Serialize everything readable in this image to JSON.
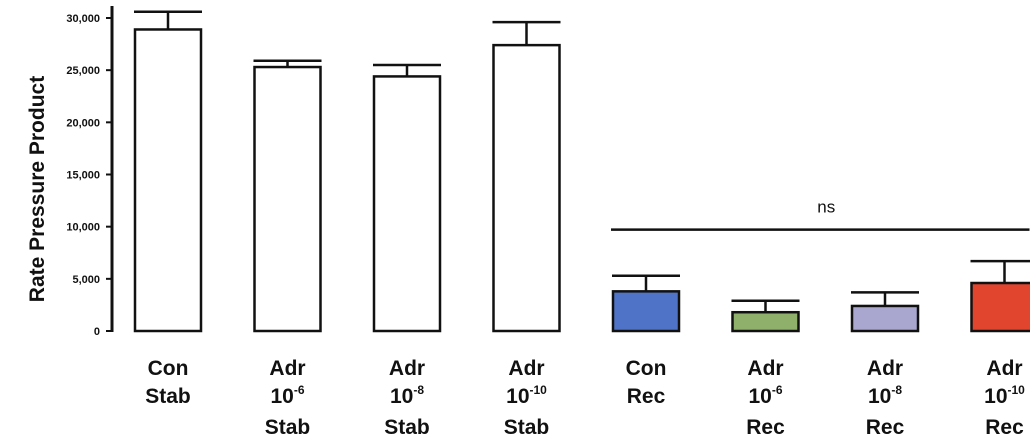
{
  "chart_data": {
    "type": "bar",
    "title": "",
    "xlabel": "",
    "ylabel": "Rate Pressure Product",
    "ylim": [
      0,
      30000
    ],
    "yticks": [
      {
        "value": 0,
        "label": "0"
      },
      {
        "value": 5000,
        "label": "5,000"
      },
      {
        "value": 10000,
        "label": "10,000"
      },
      {
        "value": 15000,
        "label": "15,000"
      },
      {
        "value": 20000,
        "label": "20,000"
      },
      {
        "value": 25000,
        "label": "25,000"
      },
      {
        "value": 30000,
        "label": "30,000"
      }
    ],
    "categories": [
      {
        "lines": [
          {
            "text": "Con"
          },
          {
            "text": "Stab"
          }
        ],
        "value": 28900,
        "error": 1700,
        "color": "#ffffff"
      },
      {
        "lines": [
          {
            "text": "Adr"
          },
          {
            "text": "10",
            "sup": "-6"
          },
          {
            "text": "Stab"
          }
        ],
        "value": 25300,
        "error": 600,
        "color": "#ffffff"
      },
      {
        "lines": [
          {
            "text": "Adr"
          },
          {
            "text": "10",
            "sup": "-8"
          },
          {
            "text": "Stab"
          }
        ],
        "value": 24400,
        "error": 1100,
        "color": "#ffffff"
      },
      {
        "lines": [
          {
            "text": "Adr"
          },
          {
            "text": "10",
            "sup": "-10"
          },
          {
            "text": "Stab"
          }
        ],
        "value": 27400,
        "error": 2200,
        "color": "#ffffff"
      },
      {
        "lines": [
          {
            "text": "Con"
          },
          {
            "text": "Rec"
          }
        ],
        "value": 3800,
        "error": 1500,
        "color": "#4f74c7"
      },
      {
        "lines": [
          {
            "text": "Adr"
          },
          {
            "text": "10",
            "sup": "-6"
          },
          {
            "text": "Rec"
          }
        ],
        "value": 1800,
        "error": 1100,
        "color": "#8fb06a"
      },
      {
        "lines": [
          {
            "text": "Adr"
          },
          {
            "text": "10",
            "sup": "-8"
          },
          {
            "text": "Rec"
          }
        ],
        "value": 2400,
        "error": 1300,
        "color": "#a9a7cf"
      },
      {
        "lines": [
          {
            "text": "Adr"
          },
          {
            "text": "10",
            "sup": "-10"
          },
          {
            "text": "Rec"
          }
        ],
        "value": 4600,
        "error": 2100,
        "color": "#e2452e"
      }
    ],
    "annotations": [
      {
        "text": "ns",
        "from_category": 4,
        "to_category": 7,
        "value": 10000
      }
    ],
    "grid": false,
    "legend": "none"
  }
}
